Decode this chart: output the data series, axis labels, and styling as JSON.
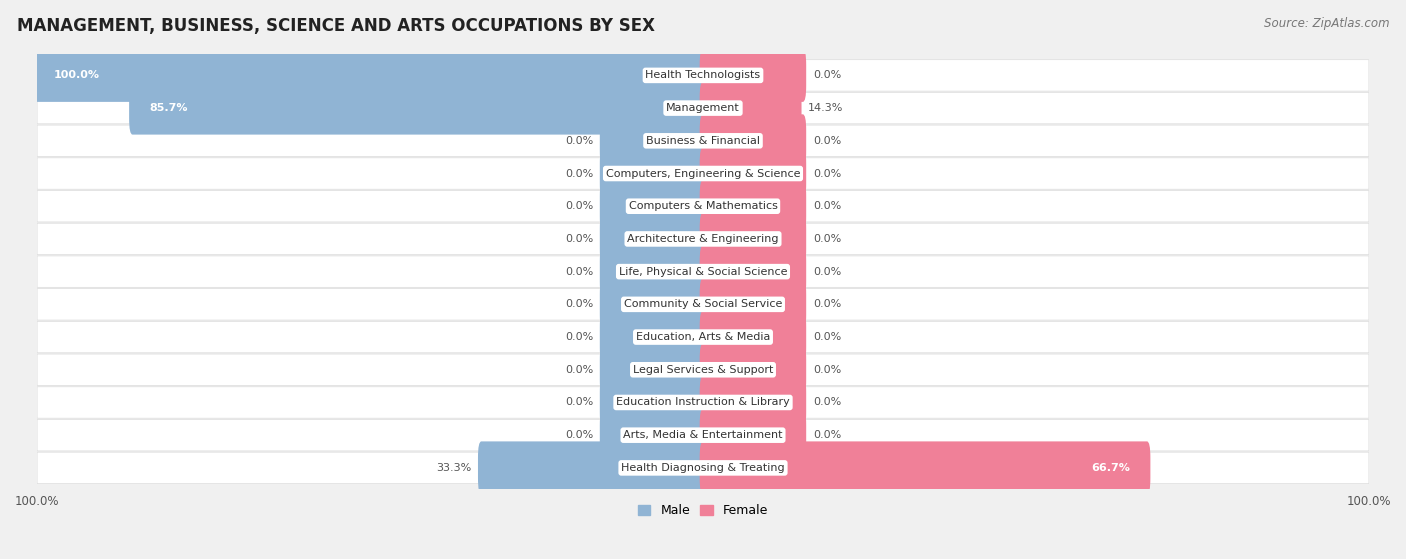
{
  "title": "MANAGEMENT, BUSINESS, SCIENCE AND ARTS OCCUPATIONS BY SEX",
  "source": "Source: ZipAtlas.com",
  "categories": [
    "Health Technologists",
    "Management",
    "Business & Financial",
    "Computers, Engineering & Science",
    "Computers & Mathematics",
    "Architecture & Engineering",
    "Life, Physical & Social Science",
    "Community & Social Service",
    "Education, Arts & Media",
    "Legal Services & Support",
    "Education Instruction & Library",
    "Arts, Media & Entertainment",
    "Health Diagnosing & Treating"
  ],
  "male_pct": [
    100.0,
    85.7,
    0.0,
    0.0,
    0.0,
    0.0,
    0.0,
    0.0,
    0.0,
    0.0,
    0.0,
    0.0,
    33.3
  ],
  "female_pct": [
    0.0,
    14.3,
    0.0,
    0.0,
    0.0,
    0.0,
    0.0,
    0.0,
    0.0,
    0.0,
    0.0,
    0.0,
    66.7
  ],
  "male_color": "#90b4d4",
  "female_color": "#f08098",
  "bg_color": "#f0f0f0",
  "row_bg_color": "#ffffff",
  "title_fontsize": 12,
  "source_fontsize": 8.5,
  "label_fontsize": 8,
  "cat_fontsize": 8,
  "legend_fontsize": 9,
  "min_bar_pct": 15.0
}
